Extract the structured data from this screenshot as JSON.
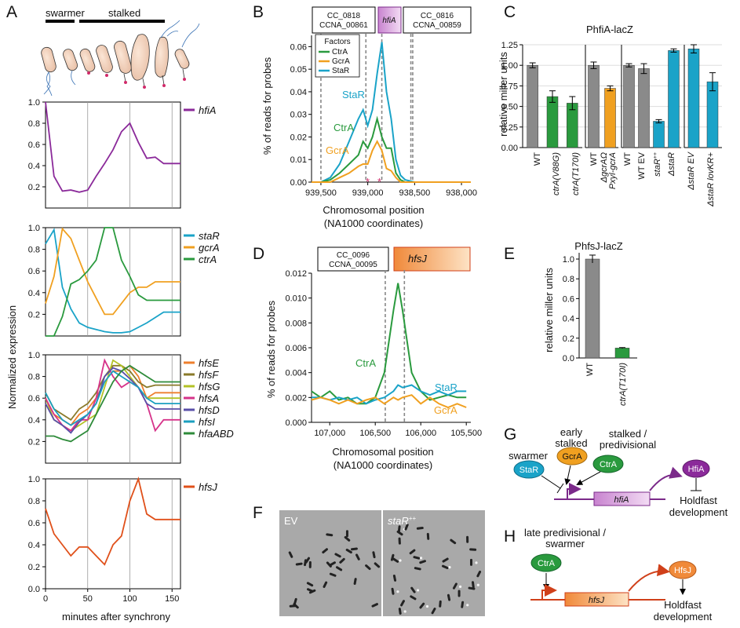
{
  "colors": {
    "purple": "#8b2a9a",
    "cyan": "#1aa3c8",
    "orange": "#f0a020",
    "green": "#2a9a3e",
    "red": "#e0501a",
    "grey": "#8a8a8a",
    "hfsE": "#ee7f2d",
    "hfsF": "#8a7a2a",
    "hfsG": "#b3c226",
    "hfsA": "#d6338a",
    "hfsD": "#5a4fa8",
    "hfsI": "#1b9fbf",
    "hfaABD": "#2e8b3a"
  },
  "panelA": {
    "letter": "A",
    "swarmer": "swarmer",
    "stalked": "stalked",
    "ylabel": "Normalized expression",
    "xlabel": "minutes after synchrony",
    "xticks": [
      "0",
      "50",
      "100",
      "150"
    ],
    "yticks": [
      "1.0",
      "0.8",
      "0.6",
      "0.4",
      "0.2"
    ],
    "yticks0": [
      "1.0",
      "0.8",
      "0.6",
      "0.4",
      "0.2",
      "0.0"
    ]
  },
  "panelB": {
    "letter": "B",
    "gene_left": "CC_0818",
    "gene_left2": "CCNA_00861",
    "gene_mid": "hfiA",
    "gene_right": "CC_0816",
    "gene_right2": "CCNA_00859",
    "legend_title": "Factors",
    "ylabel": "% of reads for probes",
    "xlabel1": "Chromosomal position",
    "xlabel2": "(NA1000 coordinates)",
    "xticks": [
      "939,500",
      "939,000",
      "938,500",
      "938,000"
    ],
    "yticks": [
      "0.06",
      "0.05",
      "0.04",
      "0.03",
      "0.02",
      "0.01",
      "0.00"
    ],
    "lbl_star": "StaR",
    "lbl_ctr": "CtrA",
    "lbl_gcr": "GcrA",
    "legend_ctr": "CtrA",
    "legend_gcr": "GcrA",
    "legend_star": "StaR"
  },
  "panelC": {
    "letter": "C",
    "title": "PhfiA-lacZ",
    "ylabel": "relative miller units",
    "yticks": [
      "1.25",
      "1.00",
      "0.75",
      "0.50",
      "0.25",
      "0.00"
    ],
    "cat1": "WT",
    "cat2": "ctrA(V88G)",
    "cat3": "ctrA(T170I)",
    "cat4": "WT",
    "cat5a": "ΔgcrAΩ",
    "cat5b": "Pxyl-gcrA",
    "cat6": "WT",
    "cat7": "WT EV",
    "cat8": "staR",
    "cat8sup": "++",
    "cat9": "ΔstaR",
    "cat10": "ΔstaR  EV",
    "cat11": "ΔstaR  lovKR+"
  },
  "panelD": {
    "letter": "D",
    "gene_left": "CC_0096",
    "gene_left2": "CCNA_00095",
    "gene_right": "hfsJ",
    "ylabel": "% of reads for probes",
    "xlabel1": "Chromosomal position",
    "xlabel2": "(NA1000 coordinates)",
    "xticks": [
      "107,000",
      "106,500",
      "106,000",
      "105,500"
    ],
    "yticks": [
      "0.012",
      "0.010",
      "0.008",
      "0.006",
      "0.004",
      "0.002",
      "0.000"
    ],
    "lbl_ctr": "CtrA",
    "lbl_star": "StaR",
    "lbl_gcr": "GcrA"
  },
  "panelE": {
    "letter": "E",
    "title": "PhfsJ-lacZ",
    "ylabel": "relative miller units",
    "yticks": [
      "1.0",
      "0.8",
      "0.6",
      "0.4",
      "0.2",
      "0.0"
    ],
    "cat1": "WT",
    "cat2": "ctrA(T170I)"
  },
  "panelF": {
    "letter": "F",
    "left": "EV",
    "right": "staR",
    "right_sup": "++"
  },
  "panelG": {
    "letter": "G",
    "swarmer": "swarmer",
    "early1": "early",
    "early2": "stalked",
    "stalked1": "stalked /",
    "stalked2": "predivisional",
    "star": "StaR",
    "gcra": "GcrA",
    "ctra": "CtrA",
    "gene": "hfiA",
    "protein": "HfiA",
    "out1": "Holdfast",
    "out2": "development"
  },
  "panelH": {
    "letter": "H",
    "late1": "late predivisional /",
    "late2": "swarmer",
    "ctra": "CtrA",
    "gene": "hfsJ",
    "protein": "HfsJ",
    "out1": "Holdfast",
    "out2": "development"
  },
  "chart_data": [
    {
      "type": "line",
      "title": "",
      "panel": "A-hfiA",
      "x": [
        0,
        10,
        20,
        30,
        40,
        50,
        60,
        70,
        80,
        90,
        100,
        110,
        120,
        130,
        140,
        150,
        160
      ],
      "series": [
        {
          "name": "hfiA",
          "values": [
            1.0,
            0.3,
            0.16,
            0.17,
            0.15,
            0.17,
            0.3,
            0.42,
            0.55,
            0.72,
            0.8,
            0.62,
            0.47,
            0.48,
            0.42,
            0.42,
            0.42
          ]
        }
      ],
      "xlabel": "minutes after synchrony",
      "ylabel": "Normalized expression",
      "ylim": [
        0,
        1
      ]
    },
    {
      "type": "line",
      "panel": "A-regulators",
      "x": [
        0,
        10,
        20,
        30,
        40,
        50,
        60,
        70,
        80,
        90,
        100,
        110,
        120,
        130,
        140,
        150,
        160
      ],
      "series": [
        {
          "name": "staR",
          "values": [
            0.85,
            0.98,
            0.45,
            0.25,
            0.12,
            0.08,
            0.06,
            0.04,
            0.03,
            0.03,
            0.04,
            0.08,
            0.12,
            0.17,
            0.22,
            0.22,
            0.22
          ]
        },
        {
          "name": "gcrA",
          "values": [
            0.3,
            0.55,
            0.99,
            0.9,
            0.7,
            0.5,
            0.35,
            0.2,
            0.2,
            0.3,
            0.4,
            0.45,
            0.45,
            0.5,
            0.5,
            0.5,
            0.5
          ]
        },
        {
          "name": "ctrA",
          "values": [
            0.0,
            0.0,
            0.18,
            0.48,
            0.52,
            0.6,
            0.7,
            1.0,
            1.0,
            0.7,
            0.55,
            0.38,
            0.33,
            0.33,
            0.33,
            0.33,
            0.33
          ]
        }
      ],
      "ylim": [
        0,
        1
      ]
    },
    {
      "type": "line",
      "panel": "A-hfs",
      "x": [
        0,
        10,
        20,
        30,
        40,
        50,
        60,
        70,
        80,
        90,
        100,
        110,
        120,
        130,
        140,
        150,
        160
      ],
      "series": [
        {
          "name": "hfsE",
          "values": [
            0.6,
            0.45,
            0.4,
            0.35,
            0.45,
            0.5,
            0.6,
            0.75,
            0.85,
            0.85,
            0.9,
            0.8,
            0.6,
            0.65,
            0.65,
            0.65,
            0.65
          ]
        },
        {
          "name": "hfsF",
          "values": [
            0.65,
            0.5,
            0.45,
            0.4,
            0.5,
            0.55,
            0.65,
            0.8,
            0.9,
            0.9,
            0.85,
            0.75,
            0.7,
            0.72,
            0.72,
            0.72,
            0.72
          ]
        },
        {
          "name": "hfsG",
          "values": [
            0.6,
            0.4,
            0.35,
            0.3,
            0.35,
            0.4,
            0.45,
            0.7,
            0.95,
            0.9,
            0.8,
            0.7,
            0.6,
            0.6,
            0.6,
            0.6,
            0.6
          ]
        },
        {
          "name": "hfsA",
          "values": [
            0.6,
            0.45,
            0.35,
            0.3,
            0.4,
            0.4,
            0.6,
            0.95,
            0.8,
            0.7,
            0.75,
            0.7,
            0.55,
            0.3,
            0.4,
            0.4,
            0.4
          ]
        },
        {
          "name": "hfsD",
          "values": [
            0.55,
            0.4,
            0.35,
            0.28,
            0.38,
            0.45,
            0.55,
            0.8,
            0.88,
            0.85,
            0.78,
            0.7,
            0.55,
            0.5,
            0.5,
            0.5,
            0.5
          ]
        },
        {
          "name": "hfsI",
          "values": [
            0.65,
            0.5,
            0.4,
            0.35,
            0.4,
            0.45,
            0.55,
            0.75,
            0.85,
            0.8,
            0.75,
            0.7,
            0.6,
            0.55,
            0.55,
            0.55,
            0.55
          ]
        },
        {
          "name": "hfaABD",
          "values": [
            0.25,
            0.25,
            0.22,
            0.2,
            0.25,
            0.3,
            0.45,
            0.6,
            0.75,
            0.85,
            0.9,
            0.85,
            0.8,
            0.75,
            0.75,
            0.75,
            0.75
          ]
        }
      ],
      "ylim": [
        0,
        1
      ]
    },
    {
      "type": "line",
      "panel": "A-hfsJ",
      "x": [
        0,
        10,
        20,
        30,
        40,
        50,
        60,
        70,
        80,
        90,
        100,
        110,
        120,
        130,
        140,
        150,
        160
      ],
      "series": [
        {
          "name": "hfsJ",
          "values": [
            0.73,
            0.5,
            0.4,
            0.3,
            0.38,
            0.38,
            0.3,
            0.22,
            0.4,
            0.48,
            0.8,
            1.0,
            0.68,
            0.63,
            0.63,
            0.63,
            0.63
          ]
        }
      ],
      "ylim": [
        0,
        1
      ]
    },
    {
      "type": "line",
      "panel": "B",
      "x": [
        939600,
        939500,
        939400,
        939300,
        939200,
        939100,
        939050,
        939000,
        938950,
        938900,
        938850,
        938800,
        938750,
        938700,
        938650,
        938600,
        938500,
        938400,
        938300,
        938200,
        938100,
        938000,
        937900
      ],
      "series": [
        {
          "name": "StaR",
          "values": [
            0.0,
            0.0,
            0.002,
            0.008,
            0.018,
            0.028,
            0.032,
            0.025,
            0.032,
            0.048,
            0.062,
            0.04,
            0.028,
            0.01,
            0.003,
            0.001,
            0.0,
            0.0,
            0.0,
            0.0,
            0.0,
            0.0,
            0.0
          ]
        },
        {
          "name": "CtrA",
          "values": [
            0.0,
            0.0,
            0.001,
            0.004,
            0.008,
            0.012,
            0.018,
            0.015,
            0.02,
            0.028,
            0.02,
            0.015,
            0.015,
            0.004,
            0.001,
            0.0,
            0.0,
            0.0,
            0.0,
            0.0,
            0.0,
            0.0,
            0.0
          ]
        },
        {
          "name": "GcrA",
          "values": [
            0.0,
            0.0,
            0.0,
            0.002,
            0.004,
            0.007,
            0.008,
            0.008,
            0.014,
            0.018,
            0.014,
            0.006,
            0.005,
            0.002,
            0.0,
            0.0,
            0.0,
            0.0,
            0.0,
            0.0,
            0.0,
            0.0,
            0.0
          ]
        }
      ],
      "xlabel": "Chromosomal position",
      "ylabel": "% of reads for probes",
      "ylim": [
        0,
        0.065
      ]
    },
    {
      "type": "bar",
      "panel": "C",
      "title": "PhfiA-lacZ",
      "categories": [
        "WT",
        "ctrA(V88G)",
        "ctrA(T170I)",
        "WT",
        "ΔgcrAΩ Pxyl-gcrA",
        "WT",
        "WT EV",
        "staR++",
        "ΔstaR",
        "ΔstaR EV",
        "ΔstaR lovKR+"
      ],
      "values": [
        1.0,
        0.62,
        0.54,
        1.0,
        0.72,
        1.0,
        0.96,
        0.32,
        1.18,
        1.2,
        0.8
      ],
      "ylabel": "relative miller units",
      "ylim": [
        0,
        1.25
      ]
    },
    {
      "type": "line",
      "panel": "D",
      "x": [
        107200,
        107100,
        107000,
        106900,
        106800,
        106700,
        106600,
        106500,
        106400,
        106300,
        106250,
        106200,
        106100,
        106000,
        105900,
        105800,
        105700,
        105600,
        105500
      ],
      "series": [
        {
          "name": "CtrA",
          "values": [
            0.0025,
            0.002,
            0.0025,
            0.0018,
            0.002,
            0.0015,
            0.0015,
            0.002,
            0.004,
            0.009,
            0.0112,
            0.009,
            0.004,
            0.0025,
            0.0018,
            0.002,
            0.0022,
            0.002,
            0.002
          ]
        },
        {
          "name": "StaR",
          "values": [
            0.002,
            0.002,
            0.0018,
            0.002,
            0.0018,
            0.002,
            0.0015,
            0.0018,
            0.002,
            0.0025,
            0.003,
            0.0028,
            0.003,
            0.0025,
            0.0022,
            0.0025,
            0.0022,
            0.0025,
            0.0025
          ]
        },
        {
          "name": "GcrA",
          "values": [
            0.0018,
            0.002,
            0.0018,
            0.0015,
            0.0018,
            0.0015,
            0.0018,
            0.002,
            0.0015,
            0.002,
            0.0018,
            0.002,
            0.0022,
            0.0015,
            0.002,
            0.0015,
            0.0012,
            0.0015,
            0.0012
          ]
        }
      ],
      "xlabel": "Chromosomal position",
      "ylabel": "% of reads for probes",
      "ylim": [
        0,
        0.012
      ]
    },
    {
      "type": "bar",
      "panel": "E",
      "title": "PhfsJ-lacZ",
      "categories": [
        "WT",
        "ctrA(T170I)"
      ],
      "values": [
        1.0,
        0.1
      ],
      "ylabel": "relative miller units",
      "ylim": [
        0,
        1.0
      ]
    }
  ]
}
